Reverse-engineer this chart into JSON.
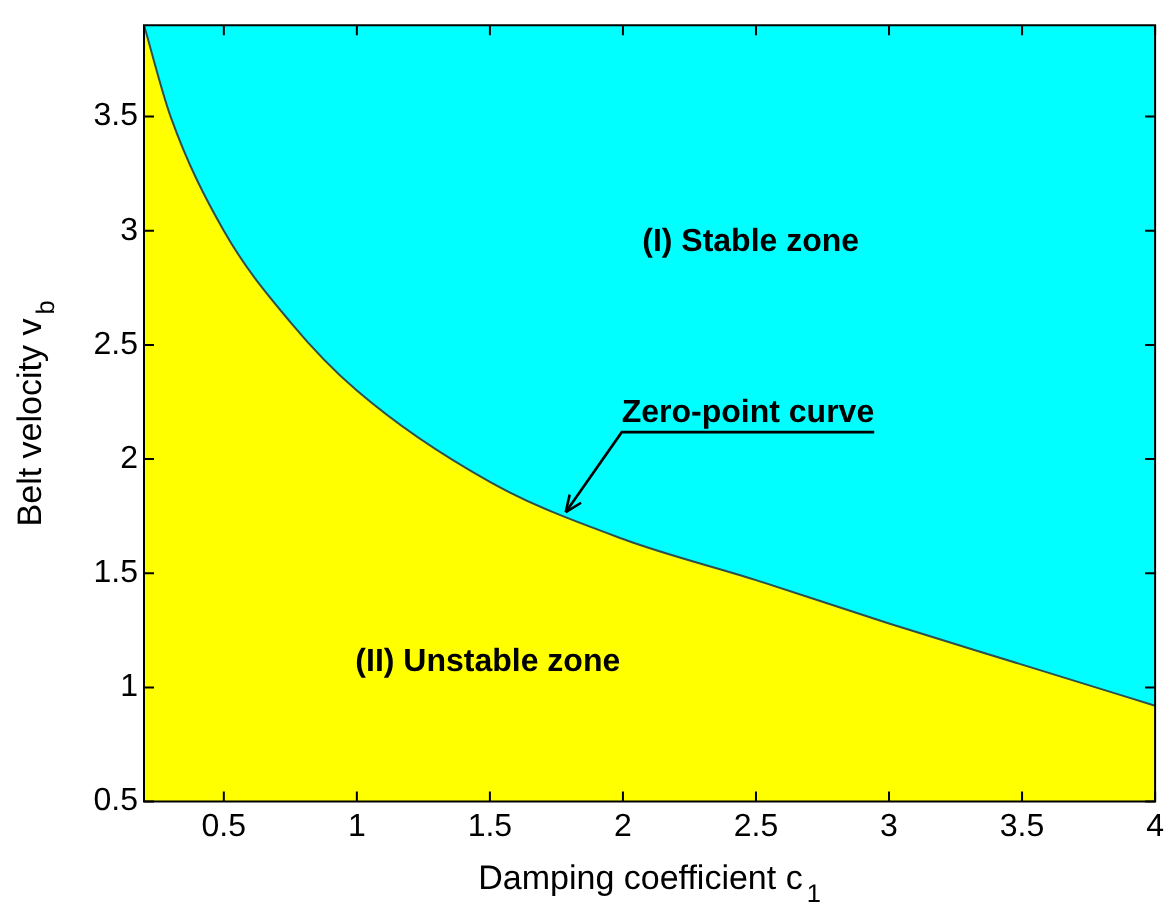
{
  "chart_data": {
    "type": "area",
    "xlabel": "Damping coefficient c$_{1}$",
    "ylabel": "Belt velocity v$_{b}$",
    "x": [
      0.2,
      0.3,
      0.5,
      0.75,
      1,
      1.5,
      2,
      2.5,
      3,
      3.5,
      4
    ],
    "series": [
      {
        "color": "#ffff00",
        "values": [
          3.9,
          3.5,
          3.0,
          2.6,
          2.3,
          1.9,
          1.65,
          1.47,
          1.28,
          1.1,
          0.92
        ]
      }
    ],
    "xlim": [
      0.2,
      4
    ],
    "xticks": [
      0.5,
      1,
      1.5,
      2,
      2.5,
      3,
      3.5,
      4
    ],
    "ylim": [
      0.5,
      3.9
    ],
    "yticks": [
      0.5,
      1,
      1.5,
      2,
      2.5,
      3,
      3.5
    ],
    "annotations": [
      "(I) Stable zone",
      {
        "text": "Zero-point curve",
        "x": 1.77,
        "y": 1.75
      },
      "(II) Unstable zone"
    ],
    "grid": false,
    "legend": false
  }
}
